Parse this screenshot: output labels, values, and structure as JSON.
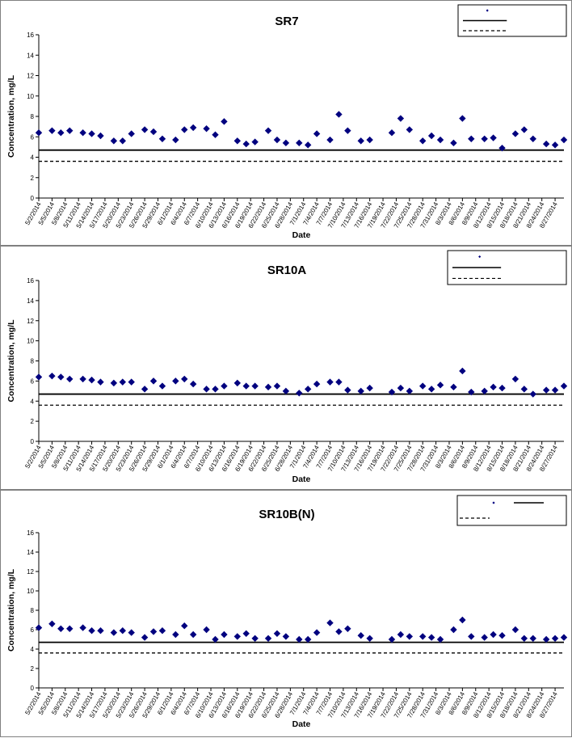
{
  "chart_data": [
    {
      "type": "scatter",
      "title": "SR7",
      "xlabel": "Date",
      "ylabel": "Concentration, mg/L",
      "ylim": [
        0,
        16
      ],
      "yticks": [
        "0",
        "2",
        "4",
        "6",
        "8",
        "10",
        "12",
        "14",
        "16"
      ],
      "xrange": [
        "2014-05-02",
        "2014-08-29"
      ],
      "xticks": [
        "5/2/2014",
        "5/5/2014",
        "5/8/2014",
        "5/11/2014",
        "5/14/2014",
        "5/17/2014",
        "5/20/2014",
        "5/23/2014",
        "5/26/2014",
        "5/29/2014",
        "6/1/2014",
        "6/4/2014",
        "6/7/2014",
        "6/10/2014",
        "6/13/2014",
        "6/16/2014",
        "6/19/2014",
        "6/22/2014",
        "6/25/2014",
        "6/28/2014",
        "7/1/2014",
        "7/4/2014",
        "7/7/2014",
        "7/10/2014",
        "7/13/2014",
        "7/16/2014",
        "7/19/2014",
        "7/22/2014",
        "7/25/2014",
        "7/28/2014",
        "7/31/2014",
        "8/3/2014",
        "8/6/2014",
        "8/9/2014",
        "8/12/2014",
        "8/15/2014",
        "8/18/2014",
        "8/21/2014",
        "8/24/2014",
        "8/27/2014"
      ],
      "grid": false,
      "legend_position": "top-right",
      "marker_color": "#00007f",
      "series": [
        {
          "x": [
            "2014-05-02",
            "2014-05-05",
            "2014-05-07",
            "2014-05-09",
            "2014-05-12",
            "2014-05-14",
            "2014-05-16",
            "2014-05-19",
            "2014-05-21",
            "2014-05-23",
            "2014-05-26",
            "2014-05-28",
            "2014-05-30",
            "2014-06-02",
            "2014-06-04",
            "2014-06-06",
            "2014-06-09",
            "2014-06-11",
            "2014-06-13",
            "2014-06-16",
            "2014-06-18",
            "2014-06-20",
            "2014-06-23",
            "2014-06-25",
            "2014-06-27",
            "2014-06-30",
            "2014-07-02",
            "2014-07-04",
            "2014-07-07",
            "2014-07-09",
            "2014-07-11",
            "2014-07-14",
            "2014-07-16",
            "2014-07-21",
            "2014-07-23",
            "2014-07-25",
            "2014-07-28",
            "2014-07-30",
            "2014-08-01",
            "2014-08-04",
            "2014-08-06",
            "2014-08-08",
            "2014-08-11",
            "2014-08-13",
            "2014-08-15",
            "2014-08-18",
            "2014-08-20",
            "2014-08-22",
            "2014-08-25",
            "2014-08-27",
            "2014-08-29"
          ],
          "values": [
            6.4,
            6.6,
            6.4,
            6.6,
            6.4,
            6.3,
            6.1,
            5.6,
            5.6,
            6.3,
            6.7,
            6.5,
            5.8,
            5.7,
            6.7,
            6.9,
            6.8,
            6.2,
            7.5,
            5.6,
            5.3,
            5.5,
            6.6,
            5.7,
            5.4,
            5.4,
            5.2,
            6.3,
            5.7,
            8.2,
            6.6,
            5.6,
            5.7,
            6.4,
            7.8,
            6.7,
            5.6,
            6.1,
            5.7,
            5.4,
            7.8,
            5.8,
            5.8,
            5.9,
            4.9,
            6.3,
            6.7,
            5.8,
            5.3,
            5.2,
            5.7
          ]
        },
        {
          "style": "solid",
          "values": [
            4.7,
            4.7
          ]
        },
        {
          "style": "dashed",
          "values": [
            3.6,
            3.6
          ]
        }
      ]
    },
    {
      "type": "scatter",
      "title": "SR10A",
      "xlabel": "Date",
      "ylabel": "Concentration, mg/L",
      "ylim": [
        0,
        16
      ],
      "yticks": [
        "0",
        "2",
        "4",
        "6",
        "8",
        "10",
        "12",
        "14",
        "16"
      ],
      "xrange": [
        "2014-05-02",
        "2014-08-29"
      ],
      "xticks": [
        "5/2/2014",
        "5/5/2014",
        "5/8/2014",
        "5/11/2014",
        "5/14/2014",
        "5/17/2014",
        "5/20/2014",
        "5/23/2014",
        "5/26/2014",
        "5/29/2014",
        "6/1/2014",
        "6/4/2014",
        "6/7/2014",
        "6/10/2014",
        "6/13/2014",
        "6/16/2014",
        "6/19/2014",
        "6/22/2014",
        "6/25/2014",
        "6/28/2014",
        "7/1/2014",
        "7/4/2014",
        "7/7/2014",
        "7/10/2014",
        "7/13/2014",
        "7/16/2014",
        "7/19/2014",
        "7/22/2014",
        "7/25/2014",
        "7/28/2014",
        "7/31/2014",
        "8/3/2014",
        "8/6/2014",
        "8/9/2014",
        "8/12/2014",
        "8/15/2014",
        "8/18/2014",
        "8/21/2014",
        "8/24/2014",
        "8/27/2014"
      ],
      "grid": false,
      "legend_position": "top-right",
      "marker_color": "#00007f",
      "series": [
        {
          "x": [
            "2014-05-02",
            "2014-05-05",
            "2014-05-07",
            "2014-05-09",
            "2014-05-12",
            "2014-05-14",
            "2014-05-16",
            "2014-05-19",
            "2014-05-21",
            "2014-05-23",
            "2014-05-26",
            "2014-05-28",
            "2014-05-30",
            "2014-06-02",
            "2014-06-04",
            "2014-06-06",
            "2014-06-09",
            "2014-06-11",
            "2014-06-13",
            "2014-06-16",
            "2014-06-18",
            "2014-06-20",
            "2014-06-23",
            "2014-06-25",
            "2014-06-27",
            "2014-06-30",
            "2014-07-02",
            "2014-07-04",
            "2014-07-07",
            "2014-07-09",
            "2014-07-11",
            "2014-07-14",
            "2014-07-16",
            "2014-07-21",
            "2014-07-23",
            "2014-07-25",
            "2014-07-28",
            "2014-07-30",
            "2014-08-01",
            "2014-08-04",
            "2014-08-06",
            "2014-08-08",
            "2014-08-11",
            "2014-08-13",
            "2014-08-15",
            "2014-08-18",
            "2014-08-20",
            "2014-08-22",
            "2014-08-25",
            "2014-08-27",
            "2014-08-29"
          ],
          "values": [
            6.4,
            6.5,
            6.4,
            6.2,
            6.2,
            6.1,
            5.9,
            5.8,
            5.9,
            5.9,
            5.2,
            6.0,
            5.5,
            6.0,
            6.2,
            5.7,
            5.2,
            5.2,
            5.5,
            5.8,
            5.5,
            5.5,
            5.4,
            5.5,
            5.0,
            4.8,
            5.2,
            5.7,
            5.9,
            5.9,
            5.1,
            5.0,
            5.3,
            4.9,
            5.3,
            5.0,
            5.5,
            5.2,
            5.6,
            5.4,
            7.0,
            4.9,
            5.0,
            5.4,
            5.3,
            6.2,
            5.2,
            4.7,
            5.1,
            5.1,
            5.5
          ]
        },
        {
          "style": "solid",
          "values": [
            4.7,
            4.7
          ]
        },
        {
          "style": "dashed",
          "values": [
            3.6,
            3.6
          ]
        }
      ]
    },
    {
      "type": "scatter",
      "title": "SR10B(N)",
      "xlabel": "Date",
      "ylabel": "Concentration, mg/L",
      "ylim": [
        0,
        16
      ],
      "yticks": [
        "0",
        "2",
        "4",
        "6",
        "8",
        "10",
        "12",
        "14",
        "16"
      ],
      "xrange": [
        "2014-05-02",
        "2014-08-29"
      ],
      "xticks": [
        "5/2/2014",
        "5/5/2014",
        "5/8/2014",
        "5/11/2014",
        "5/14/2014",
        "5/17/2014",
        "5/20/2014",
        "5/23/2014",
        "5/26/2014",
        "5/29/2014",
        "6/1/2014",
        "6/4/2014",
        "6/7/2014",
        "6/10/2014",
        "6/13/2014",
        "6/16/2014",
        "6/19/2014",
        "6/22/2014",
        "6/25/2014",
        "6/28/2014",
        "7/1/2014",
        "7/4/2014",
        "7/7/2014",
        "7/10/2014",
        "7/13/2014",
        "7/16/2014",
        "7/19/2014",
        "7/22/2014",
        "7/25/2014",
        "7/28/2014",
        "7/31/2014",
        "8/3/2014",
        "8/6/2014",
        "8/9/2014",
        "8/12/2014",
        "8/15/2014",
        "8/18/2014",
        "8/21/2014",
        "8/24/2014",
        "8/27/2014"
      ],
      "grid": false,
      "legend_position": "top-right",
      "marker_color": "#00007f",
      "series": [
        {
          "x": [
            "2014-05-02",
            "2014-05-05",
            "2014-05-07",
            "2014-05-09",
            "2014-05-12",
            "2014-05-14",
            "2014-05-16",
            "2014-05-19",
            "2014-05-21",
            "2014-05-23",
            "2014-05-26",
            "2014-05-28",
            "2014-05-30",
            "2014-06-02",
            "2014-06-04",
            "2014-06-06",
            "2014-06-09",
            "2014-06-11",
            "2014-06-13",
            "2014-06-16",
            "2014-06-18",
            "2014-06-20",
            "2014-06-23",
            "2014-06-25",
            "2014-06-27",
            "2014-06-30",
            "2014-07-02",
            "2014-07-04",
            "2014-07-07",
            "2014-07-09",
            "2014-07-11",
            "2014-07-14",
            "2014-07-16",
            "2014-07-21",
            "2014-07-23",
            "2014-07-25",
            "2014-07-28",
            "2014-07-30",
            "2014-08-01",
            "2014-08-04",
            "2014-08-06",
            "2014-08-08",
            "2014-08-11",
            "2014-08-13",
            "2014-08-15",
            "2014-08-18",
            "2014-08-20",
            "2014-08-22",
            "2014-08-25",
            "2014-08-27",
            "2014-08-29"
          ],
          "values": [
            6.2,
            6.6,
            6.1,
            6.1,
            6.2,
            5.9,
            5.9,
            5.7,
            5.9,
            5.7,
            5.2,
            5.8,
            5.9,
            5.5,
            6.4,
            5.5,
            6.0,
            5.0,
            5.5,
            5.3,
            5.6,
            5.1,
            5.1,
            5.6,
            5.3,
            5.0,
            5.0,
            5.7,
            6.7,
            5.8,
            6.1,
            5.4,
            5.1,
            5.0,
            5.5,
            5.3,
            5.3,
            5.2,
            5.0,
            6.0,
            7.0,
            5.3,
            5.2,
            5.5,
            5.4,
            6.0,
            5.1,
            5.1,
            5.0,
            5.1,
            5.2
          ]
        },
        {
          "style": "solid",
          "values": [
            4.7,
            4.7
          ]
        },
        {
          "style": "dashed",
          "values": [
            3.6,
            3.6
          ]
        }
      ]
    }
  ]
}
